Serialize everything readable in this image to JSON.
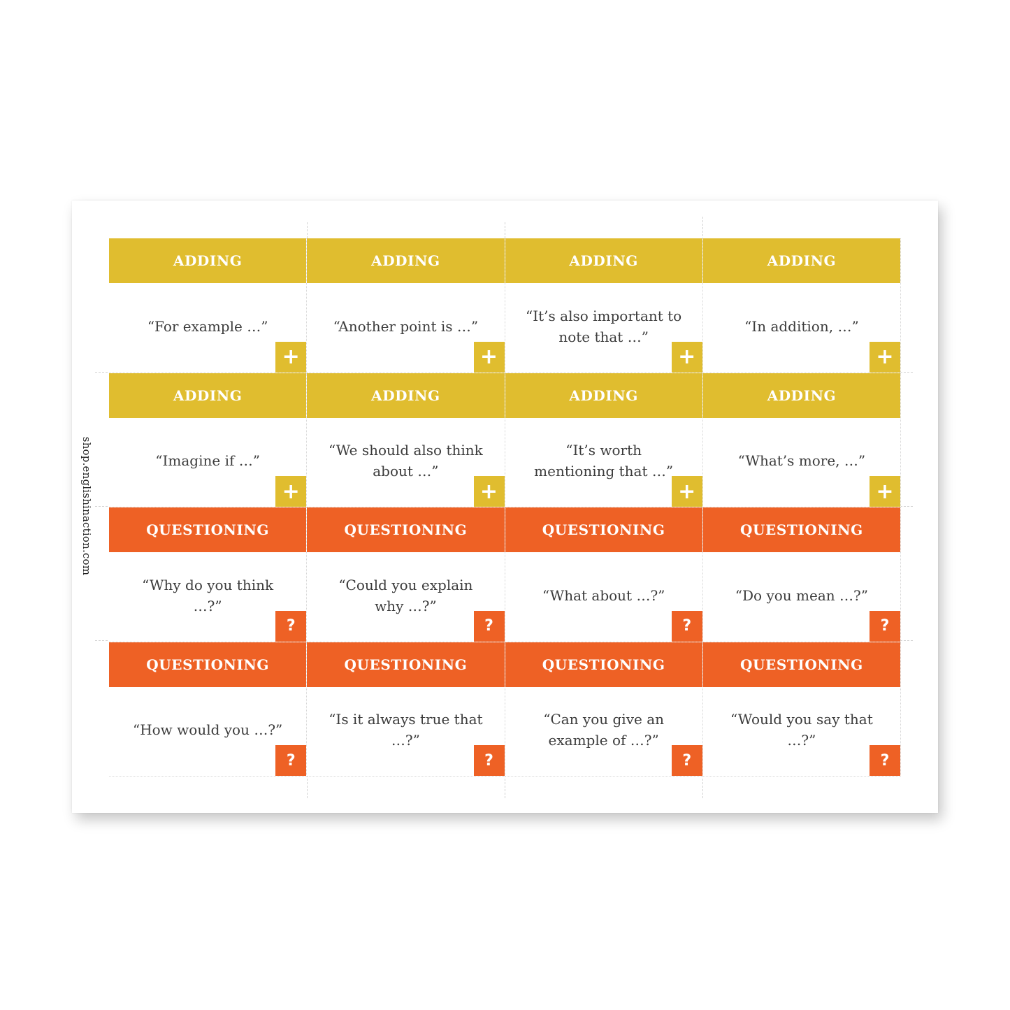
{
  "site": "shop.englishinaction.com",
  "colors": {
    "adding": "#e0bd2f",
    "questioning": "#ee6125",
    "text": "#3c3c3c"
  },
  "cards": [
    {
      "category": "ADDING",
      "phrase": "“For example …”",
      "icon": "+"
    },
    {
      "category": "ADDING",
      "phrase": "“Another point is …”",
      "icon": "+"
    },
    {
      "category": "ADDING",
      "phrase": "“It’s also important to note that …”",
      "icon": "+"
    },
    {
      "category": "ADDING",
      "phrase": "“In addition, …”",
      "icon": "+"
    },
    {
      "category": "ADDING",
      "phrase": "“Imagine if …”",
      "icon": "+"
    },
    {
      "category": "ADDING",
      "phrase": "“We should also think about …”",
      "icon": "+"
    },
    {
      "category": "ADDING",
      "phrase": "“It’s worth mentioning that …”",
      "icon": "+"
    },
    {
      "category": "ADDING",
      "phrase": "“What’s more, …”",
      "icon": "+"
    },
    {
      "category": "QUESTIONING",
      "phrase": "“Why do you think …?”",
      "icon": "?"
    },
    {
      "category": "QUESTIONING",
      "phrase": "“Could you explain why …?”",
      "icon": "?"
    },
    {
      "category": "QUESTIONING",
      "phrase": "“What about …?”",
      "icon": "?"
    },
    {
      "category": "QUESTIONING",
      "phrase": "“Do you mean …?”",
      "icon": "?"
    },
    {
      "category": "QUESTIONING",
      "phrase": "“How would you …?”",
      "icon": "?"
    },
    {
      "category": "QUESTIONING",
      "phrase": "“Is it always true that …?”",
      "icon": "?"
    },
    {
      "category": "QUESTIONING",
      "phrase": "“Can you give an example of …?”",
      "icon": "?"
    },
    {
      "category": "QUESTIONING",
      "phrase": "“Would you say that …?”",
      "icon": "?"
    }
  ]
}
